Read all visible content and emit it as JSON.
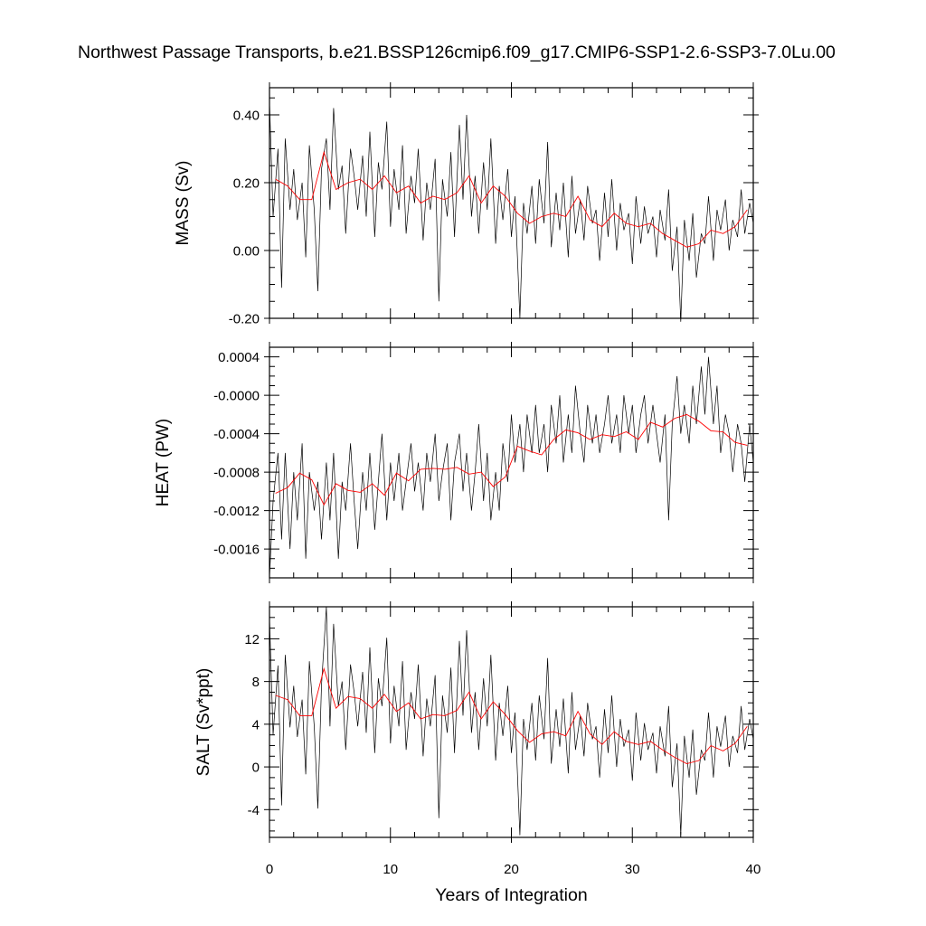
{
  "title": "Northwest Passage Transports, b.e21.BSSP126cmip6.f09_g17.CMIP6-SSP1-2.6-SSP3-7.0Lu.00",
  "xlabel": "Years of Integration",
  "colors": {
    "monthly": "#000000",
    "annual": "#ff0000",
    "frame": "#000000"
  },
  "chart_data": [
    {
      "type": "line",
      "ylabel": "MASS (Sv)",
      "xlim": [
        0,
        40
      ],
      "ylim": [
        -0.2,
        0.48
      ],
      "xticks": [
        0,
        10,
        20,
        30,
        40
      ],
      "yticks": [
        -0.2,
        0.0,
        0.2,
        0.4
      ],
      "ytick_labels": [
        "-0.20",
        "0.00",
        "0.20",
        "0.40"
      ],
      "annual_x": [
        0.5,
        1.5,
        2.5,
        3.5,
        4.5,
        5.5,
        6.5,
        7.5,
        8.5,
        9.5,
        10.5,
        11.5,
        12.5,
        13.5,
        14.5,
        15.5,
        16.5,
        17.5,
        18.5,
        19.5,
        20.5,
        21.5,
        22.5,
        23.5,
        24.5,
        25.5,
        26.5,
        27.5,
        28.5,
        29.5,
        30.5,
        31.5,
        32.5,
        33.5,
        34.5,
        35.5,
        36.5,
        37.5,
        38.5,
        39.5
      ],
      "annual": [
        0.21,
        0.19,
        0.15,
        0.15,
        0.29,
        0.18,
        0.2,
        0.21,
        0.18,
        0.22,
        0.17,
        0.19,
        0.14,
        0.16,
        0.15,
        0.17,
        0.22,
        0.14,
        0.19,
        0.16,
        0.11,
        0.08,
        0.1,
        0.11,
        0.1,
        0.16,
        0.09,
        0.07,
        0.11,
        0.08,
        0.07,
        0.08,
        0.05,
        0.03,
        0.01,
        0.02,
        0.06,
        0.05,
        0.07,
        0.12
      ],
      "monthly_x": [
        0.0,
        0.3,
        0.7,
        1.0,
        1.3,
        1.7,
        2.0,
        2.3,
        2.7,
        3.0,
        3.3,
        3.7,
        4.0,
        4.3,
        4.7,
        5.0,
        5.3,
        5.7,
        6.0,
        6.3,
        6.7,
        7.0,
        7.3,
        7.7,
        8.0,
        8.3,
        8.7,
        9.0,
        9.3,
        9.7,
        10.0,
        10.3,
        10.7,
        11.0,
        11.3,
        11.7,
        12.0,
        12.3,
        12.7,
        13.0,
        13.3,
        13.7,
        14.0,
        14.3,
        14.7,
        15.0,
        15.3,
        15.7,
        16.0,
        16.3,
        16.7,
        17.0,
        17.3,
        17.7,
        18.0,
        18.3,
        18.7,
        19.0,
        19.3,
        19.7,
        20.0,
        20.3,
        20.7,
        21.0,
        21.3,
        21.7,
        22.0,
        22.3,
        22.7,
        23.0,
        23.3,
        23.7,
        24.0,
        24.3,
        24.7,
        25.0,
        25.3,
        25.7,
        26.0,
        26.3,
        26.7,
        27.0,
        27.3,
        27.7,
        28.0,
        28.3,
        28.7,
        29.0,
        29.3,
        29.7,
        30.0,
        30.3,
        30.7,
        31.0,
        31.3,
        31.7,
        32.0,
        32.3,
        32.7,
        33.0,
        33.3,
        33.7,
        34.0,
        34.3,
        34.7,
        35.0,
        35.3,
        35.7,
        36.0,
        36.3,
        36.7,
        37.0,
        37.3,
        37.7,
        38.0,
        38.3,
        38.7,
        39.0,
        39.3,
        39.7,
        40.0
      ],
      "monthly": [
        0.44,
        0.1,
        0.3,
        -0.11,
        0.33,
        0.12,
        0.24,
        0.09,
        0.2,
        -0.02,
        0.31,
        0.12,
        -0.12,
        0.24,
        0.33,
        0.12,
        0.42,
        0.18,
        0.25,
        0.05,
        0.3,
        0.22,
        0.12,
        0.28,
        0.1,
        0.35,
        0.04,
        0.26,
        0.18,
        0.38,
        0.07,
        0.24,
        0.12,
        0.31,
        0.05,
        0.22,
        0.14,
        0.3,
        0.03,
        0.2,
        0.12,
        0.27,
        -0.15,
        0.21,
        0.1,
        0.29,
        0.04,
        0.37,
        0.15,
        0.4,
        0.1,
        0.22,
        0.05,
        0.26,
        0.12,
        0.33,
        0.02,
        0.19,
        0.09,
        0.24,
        0.04,
        0.16,
        -0.2,
        0.14,
        0.05,
        0.19,
        0.02,
        0.21,
        0.08,
        0.32,
        0.01,
        0.17,
        0.06,
        0.2,
        -0.02,
        0.22,
        0.05,
        0.15,
        0.03,
        0.19,
        0.08,
        0.12,
        -0.03,
        0.17,
        0.04,
        0.21,
        0.0,
        0.14,
        0.06,
        0.11,
        -0.04,
        0.16,
        0.02,
        0.13,
        0.05,
        0.1,
        -0.02,
        0.12,
        0.03,
        0.18,
        -0.06,
        0.07,
        -0.21,
        0.09,
        -0.03,
        0.11,
        -0.08,
        0.05,
        0.02,
        0.16,
        -0.03,
        0.12,
        0.06,
        0.15,
        0.0,
        0.09,
        0.04,
        0.18,
        0.05,
        0.14,
        0.08
      ]
    },
    {
      "type": "line",
      "ylabel": "HEAT (PW)",
      "xlim": [
        0,
        40
      ],
      "ylim": [
        -0.0019,
        0.0005
      ],
      "xticks": [
        0,
        10,
        20,
        30,
        40
      ],
      "yticks": [
        -0.0016,
        -0.0012,
        -0.0008,
        -0.0004,
        0.0,
        0.0004
      ],
      "ytick_labels": [
        "-0.0016",
        "-0.0012",
        "-0.0008",
        "-0.0004",
        "-0.0000",
        "0.0004"
      ],
      "annual_x": [
        0.5,
        1.5,
        2.5,
        3.5,
        4.5,
        5.5,
        6.5,
        7.5,
        8.5,
        9.5,
        10.5,
        11.5,
        12.5,
        13.5,
        14.5,
        15.5,
        16.5,
        17.5,
        18.5,
        19.5,
        20.5,
        21.5,
        22.5,
        23.5,
        24.5,
        25.5,
        26.5,
        27.5,
        28.5,
        29.5,
        30.5,
        31.5,
        32.5,
        33.5,
        34.5,
        35.5,
        36.5,
        37.5,
        38.5,
        39.5
      ],
      "annual": [
        -0.00102,
        -0.00096,
        -0.00081,
        -0.00088,
        -0.00114,
        -0.00092,
        -0.00099,
        -0.00101,
        -0.00092,
        -0.00104,
        -0.00081,
        -0.00089,
        -0.00077,
        -0.00076,
        -0.00077,
        -0.00075,
        -0.00082,
        -0.0008,
        -0.00095,
        -0.00085,
        -0.00053,
        -0.00058,
        -0.00062,
        -0.00046,
        -0.00036,
        -0.00039,
        -0.00046,
        -0.00041,
        -0.00043,
        -0.00038,
        -0.00046,
        -0.00028,
        -0.00033,
        -0.00024,
        -0.0002,
        -0.00027,
        -0.00037,
        -0.00038,
        -0.00049,
        -0.00052
      ],
      "monthly_x": [
        0.0,
        0.3,
        0.7,
        1.0,
        1.3,
        1.7,
        2.0,
        2.3,
        2.7,
        3.0,
        3.3,
        3.7,
        4.0,
        4.3,
        4.7,
        5.0,
        5.3,
        5.7,
        6.0,
        6.3,
        6.7,
        7.0,
        7.3,
        7.7,
        8.0,
        8.3,
        8.7,
        9.0,
        9.3,
        9.7,
        10.0,
        10.3,
        10.7,
        11.0,
        11.3,
        11.7,
        12.0,
        12.3,
        12.7,
        13.0,
        13.3,
        13.7,
        14.0,
        14.3,
        14.7,
        15.0,
        15.3,
        15.7,
        16.0,
        16.3,
        16.7,
        17.0,
        17.3,
        17.7,
        18.0,
        18.3,
        18.7,
        19.0,
        19.3,
        19.7,
        20.0,
        20.3,
        20.7,
        21.0,
        21.3,
        21.7,
        22.0,
        22.3,
        22.7,
        23.0,
        23.3,
        23.7,
        24.0,
        24.3,
        24.7,
        25.0,
        25.3,
        25.7,
        26.0,
        26.3,
        26.7,
        27.0,
        27.3,
        27.7,
        28.0,
        28.3,
        28.7,
        29.0,
        29.3,
        29.7,
        30.0,
        30.3,
        30.7,
        31.0,
        31.3,
        31.7,
        32.0,
        32.3,
        32.7,
        33.0,
        33.3,
        33.7,
        34.0,
        34.3,
        34.7,
        35.0,
        35.3,
        35.7,
        36.0,
        36.3,
        36.7,
        37.0,
        37.3,
        37.7,
        38.0,
        38.3,
        38.7,
        39.0,
        39.3,
        39.7,
        40.0
      ],
      "monthly": [
        -0.0019,
        -0.0011,
        -0.0006,
        -0.0015,
        -0.0006,
        -0.0016,
        -0.0008,
        -0.0013,
        -0.0005,
        -0.0017,
        -0.0008,
        -0.0012,
        -0.0009,
        -0.0015,
        -0.0007,
        -0.0013,
        -0.0006,
        -0.0017,
        -0.0009,
        -0.0012,
        -0.0005,
        -0.0011,
        -0.0016,
        -0.0008,
        -0.0012,
        -0.0006,
        -0.0014,
        -0.0009,
        -0.0004,
        -0.0013,
        -0.0007,
        -0.0011,
        -0.0006,
        -0.0012,
        -0.0009,
        -0.0005,
        -0.001,
        -0.0007,
        -0.0012,
        -0.0006,
        -0.0009,
        -0.0004,
        -0.0011,
        -0.0008,
        -0.0005,
        -0.0013,
        -0.0007,
        -0.0004,
        -0.001,
        -0.0006,
        -0.0012,
        -0.0008,
        -0.0003,
        -0.0011,
        -0.0006,
        -0.0013,
        -0.0008,
        -0.0012,
        -0.0005,
        -0.0009,
        -0.0002,
        -0.0007,
        -0.0003,
        -0.0008,
        -0.0002,
        -0.0006,
        -0.0001,
        -0.0006,
        -0.0003,
        -0.0008,
        -0.0001,
        -0.0005,
        0.0,
        -0.0007,
        -0.0002,
        -0.0006,
        0.0001,
        -0.0004,
        -0.0007,
        -0.0001,
        -0.0005,
        -0.0002,
        -0.0006,
        -0.0003,
        0.0,
        -0.0005,
        -0.0002,
        -0.0006,
        0.0,
        -0.0004,
        -0.0001,
        -0.0006,
        -0.0002,
        0.0,
        -0.0005,
        -0.0001,
        -0.0004,
        -0.0007,
        -0.0002,
        -0.0013,
        -0.0003,
        0.0002,
        -0.0004,
        -0.0001,
        -0.0005,
        0.0001,
        -0.0003,
        0.0003,
        -0.0002,
        0.0004,
        -0.0003,
        0.0001,
        -0.0006,
        -0.0002,
        -0.0004,
        -0.0008,
        -0.0003,
        -0.0005,
        -0.0009,
        -0.0003,
        -0.0007
      ]
    },
    {
      "type": "line",
      "ylabel": "SALT (Sv*ppt)",
      "xlim": [
        0,
        40
      ],
      "ylim": [
        -6.6,
        15.0
      ],
      "xticks": [
        0,
        10,
        20,
        30,
        40
      ],
      "yticks": [
        -4,
        0,
        4,
        8,
        12
      ],
      "ytick_labels": [
        "-4",
        "0",
        "4",
        "8",
        "12"
      ],
      "annual_x": [
        0.5,
        1.5,
        2.5,
        3.5,
        4.5,
        5.5,
        6.5,
        7.5,
        8.5,
        9.5,
        10.5,
        11.5,
        12.5,
        13.5,
        14.5,
        15.5,
        16.5,
        17.5,
        18.5,
        19.5,
        20.5,
        21.5,
        22.5,
        23.5,
        24.5,
        25.5,
        26.5,
        27.5,
        28.5,
        29.5,
        30.5,
        31.5,
        32.5,
        33.5,
        34.5,
        35.5,
        36.5,
        37.5,
        38.5,
        39.5
      ],
      "annual": [
        6.7,
        6.3,
        4.8,
        4.8,
        9.2,
        5.5,
        6.6,
        6.4,
        5.5,
        6.8,
        5.2,
        6.0,
        4.5,
        4.9,
        4.8,
        5.3,
        7.0,
        4.5,
        6.1,
        4.9,
        3.4,
        2.3,
        3.1,
        3.3,
        2.9,
        5.2,
        3.1,
        2.1,
        3.3,
        2.4,
        2.1,
        2.4,
        1.6,
        0.9,
        0.3,
        0.6,
        2.0,
        1.5,
        2.2,
        3.8
      ],
      "monthly_x": [
        0.0,
        0.3,
        0.7,
        1.0,
        1.3,
        1.7,
        2.0,
        2.3,
        2.7,
        3.0,
        3.3,
        3.7,
        4.0,
        4.3,
        4.7,
        5.0,
        5.3,
        5.7,
        6.0,
        6.3,
        6.7,
        7.0,
        7.3,
        7.7,
        8.0,
        8.3,
        8.7,
        9.0,
        9.3,
        9.7,
        10.0,
        10.3,
        10.7,
        11.0,
        11.3,
        11.7,
        12.0,
        12.3,
        12.7,
        13.0,
        13.3,
        13.7,
        14.0,
        14.3,
        14.7,
        15.0,
        15.3,
        15.7,
        16.0,
        16.3,
        16.7,
        17.0,
        17.3,
        17.7,
        18.0,
        18.3,
        18.7,
        19.0,
        19.3,
        19.7,
        20.0,
        20.3,
        20.7,
        21.0,
        21.3,
        21.7,
        22.0,
        22.3,
        22.7,
        23.0,
        23.3,
        23.7,
        24.0,
        24.3,
        24.7,
        25.0,
        25.3,
        25.7,
        26.0,
        26.3,
        26.7,
        27.0,
        27.3,
        27.7,
        28.0,
        28.3,
        28.7,
        29.0,
        29.3,
        29.7,
        30.0,
        30.3,
        30.7,
        31.0,
        31.3,
        31.7,
        32.0,
        32.3,
        32.7,
        33.0,
        33.3,
        33.7,
        34.0,
        34.3,
        34.7,
        35.0,
        35.3,
        35.7,
        36.0,
        36.3,
        36.7,
        37.0,
        37.3,
        37.7,
        38.0,
        38.3,
        38.7,
        39.0,
        39.3,
        39.7,
        40.0
      ],
      "monthly": [
        14.0,
        3.0,
        9.5,
        -3.6,
        10.5,
        3.7,
        7.6,
        2.8,
        6.3,
        -0.7,
        9.9,
        3.8,
        -3.9,
        7.6,
        15.0,
        3.8,
        13.4,
        5.7,
        8.0,
        1.6,
        9.6,
        7.0,
        3.8,
        8.9,
        3.2,
        11.2,
        1.3,
        8.3,
        5.7,
        12.1,
        2.2,
        7.6,
        3.8,
        9.9,
        1.6,
        7.0,
        4.5,
        9.6,
        1.0,
        6.4,
        3.8,
        8.6,
        -4.8,
        6.7,
        3.2,
        9.3,
        1.3,
        11.8,
        4.8,
        12.8,
        3.2,
        7.0,
        1.6,
        8.3,
        3.8,
        10.5,
        0.6,
        6.0,
        2.9,
        7.6,
        1.3,
        5.1,
        -6.4,
        4.5,
        1.6,
        6.0,
        0.6,
        6.7,
        2.6,
        10.2,
        0.3,
        5.4,
        1.9,
        6.4,
        -0.6,
        7.0,
        1.6,
        4.8,
        1.0,
        6.0,
        2.6,
        3.8,
        -1.0,
        5.4,
        1.3,
        6.7,
        0.0,
        4.5,
        1.9,
        3.5,
        -1.3,
        5.1,
        0.6,
        4.1,
        1.6,
        3.2,
        -0.6,
        3.8,
        1.0,
        5.7,
        -1.9,
        2.2,
        -6.4,
        2.9,
        -1.0,
        3.5,
        -2.6,
        1.6,
        0.6,
        5.1,
        -1.0,
        3.8,
        1.9,
        4.8,
        0.0,
        2.9,
        1.3,
        5.7,
        1.6,
        4.5,
        2.6
      ]
    }
  ]
}
